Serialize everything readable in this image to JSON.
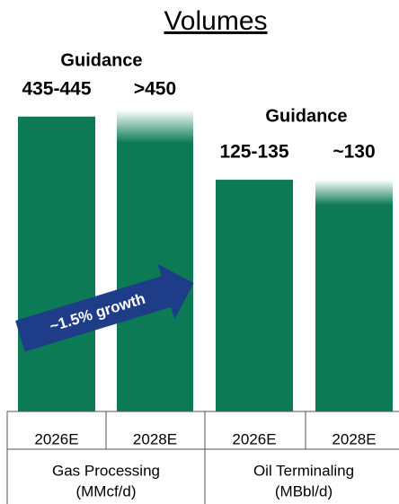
{
  "title": "Volumes",
  "annotation": "~1.5% growth",
  "chart_data": [
    {
      "type": "bar",
      "subtitle": "Guidance",
      "group": "Gas Processing",
      "unit": "(MMcf/d)",
      "categories": [
        "2026E",
        "2028E"
      ],
      "values": [
        440,
        450
      ],
      "value_labels": [
        "435-445",
        ">450"
      ],
      "fade_top": [
        false,
        true
      ],
      "color": "#0b7a55",
      "ylim": [
        0,
        500
      ]
    },
    {
      "type": "bar",
      "subtitle": "Guidance",
      "group": "Oil Terminaling",
      "unit": "(MBbl/d)",
      "categories": [
        "2026E",
        "2028E"
      ],
      "values": [
        130,
        130
      ],
      "value_labels": [
        "125-135",
        "~130"
      ],
      "fade_top": [
        false,
        true
      ],
      "color": "#0b7a55",
      "ylim": [
        0,
        188
      ]
    }
  ]
}
